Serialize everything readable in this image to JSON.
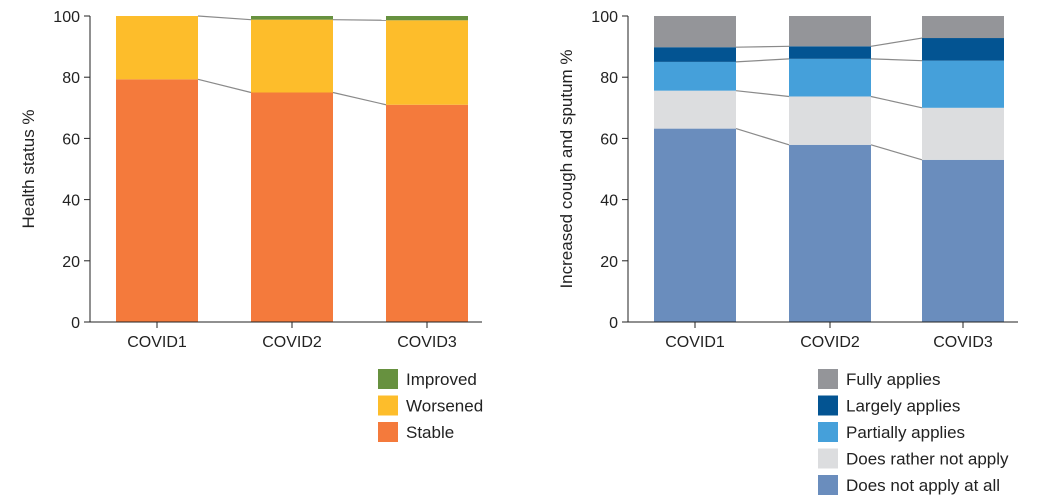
{
  "chart_data": [
    {
      "type": "bar",
      "stacked": true,
      "categories": [
        "COVID1",
        "COVID2",
        "COVID3"
      ],
      "ylabel": "Health status %",
      "ylim": [
        0,
        100
      ],
      "yticks": [
        0,
        20,
        40,
        60,
        80,
        100
      ],
      "series": [
        {
          "name": "Stable",
          "color": "#f47a3c",
          "values": [
            79.3,
            75.0,
            71.0
          ]
        },
        {
          "name": "Worsened",
          "color": "#fdbd2b",
          "values": [
            20.7,
            23.8,
            27.6
          ]
        },
        {
          "name": "Improved",
          "color": "#67913f",
          "values": [
            0.0,
            1.2,
            1.4
          ]
        }
      ],
      "legend_order": [
        "Improved",
        "Worsened",
        "Stable"
      ],
      "connector_lines": true
    },
    {
      "type": "bar",
      "stacked": true,
      "categories": [
        "COVID1",
        "COVID2",
        "COVID3"
      ],
      "ylabel": "Increased cough and sputum %",
      "ylim": [
        0,
        100
      ],
      "yticks": [
        0,
        20,
        40,
        60,
        80,
        100
      ],
      "series": [
        {
          "name": "Does not apply at all",
          "color": "#6a8dbd",
          "values": [
            63.2,
            57.9,
            53.0
          ]
        },
        {
          "name": "Does rather not apply",
          "color": "#dcdddf",
          "values": [
            12.4,
            15.8,
            17.0
          ]
        },
        {
          "name": "Partially applies",
          "color": "#45a0da",
          "values": [
            9.4,
            12.3,
            15.4
          ]
        },
        {
          "name": "Largely applies",
          "color": "#035492",
          "values": [
            4.8,
            4.1,
            7.4
          ]
        },
        {
          "name": "Fully applies",
          "color": "#949599",
          "values": [
            10.2,
            9.9,
            7.2
          ]
        }
      ],
      "legend_order": [
        "Fully applies",
        "Largely applies",
        "Partially applies",
        "Does rather not apply",
        "Does not apply at all"
      ],
      "connector_lines": true
    }
  ]
}
